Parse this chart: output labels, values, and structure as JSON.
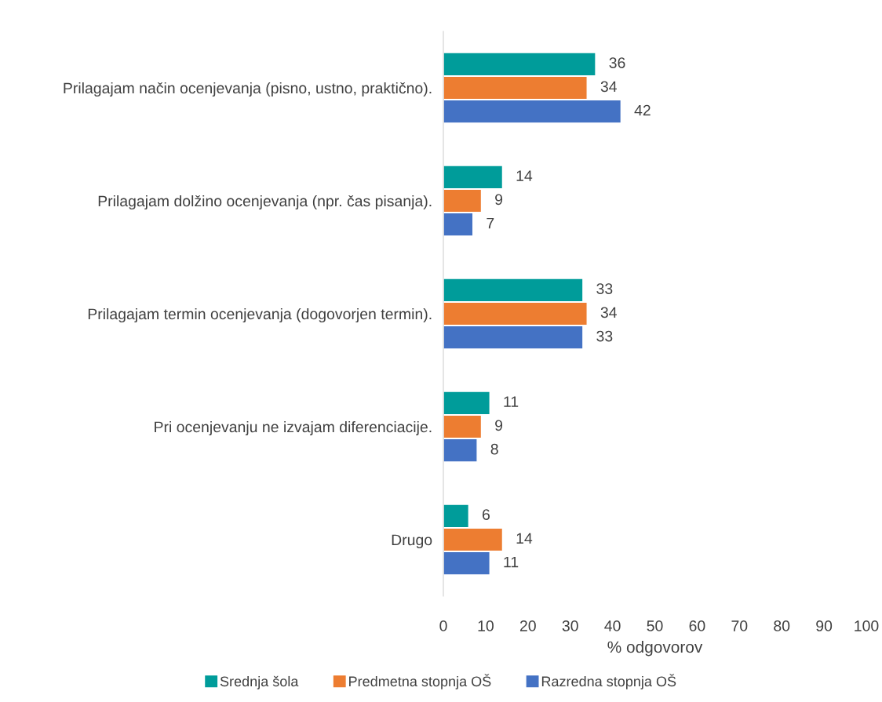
{
  "chart_data": {
    "type": "bar",
    "orientation": "horizontal",
    "xlabel": "% odgovorov",
    "categories": [
      "Prilagajam način ocenjevanja (pisno, ustno, praktično).",
      "Prilagajam dolžino ocenjevanja (npr. čas pisanja).",
      "Prilagajam termin ocenjevanja (dogovorjen termin).",
      "Pri ocenjevanju ne izvajam diferenciacije.",
      "Drugo"
    ],
    "series": [
      {
        "name": "Srednja šola",
        "color": "#009c9a",
        "values": [
          36,
          14,
          33,
          11,
          6
        ]
      },
      {
        "name": "Predmetna stopnja OŠ",
        "color": "#ed7d31",
        "values": [
          34,
          9,
          34,
          9,
          14
        ]
      },
      {
        "name": "Razredna stopnja OŠ",
        "color": "#4472c4",
        "values": [
          42,
          7,
          33,
          8,
          11
        ]
      }
    ],
    "xlim": [
      0,
      100
    ],
    "xticks": [
      0,
      10,
      20,
      30,
      40,
      50,
      60,
      70,
      80,
      90,
      100
    ],
    "data_labels": true,
    "grid": false,
    "legend": "bottom"
  }
}
